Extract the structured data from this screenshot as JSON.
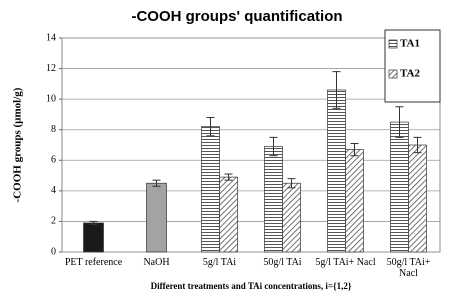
{
  "chart_data": {
    "type": "bar",
    "title": "-COOH groups' quantification",
    "y_label": "-COOH groups (µmol/g)",
    "x_label": "Different treatments and TAi concentrations, i={1,2}",
    "categories": [
      "PET reference",
      "NaOH",
      "5g/l TAi",
      "50g/l TAi",
      "5g/l TAi+ Nacl",
      "50g/l TAi+ Nacl"
    ],
    "series": [
      {
        "values": [
          1.9,
          4.5,
          null,
          null,
          null,
          null
        ],
        "errors": [
          0.1,
          0.2,
          null,
          null,
          null,
          null
        ],
        "colors": [
          "#1a1a1a",
          "#a3a3a3",
          null,
          null,
          null,
          null
        ]
      },
      {
        "name": "TA1",
        "color": "#555555",
        "pattern": "horizontal",
        "values": [
          null,
          null,
          8.2,
          6.9,
          10.6,
          8.5
        ],
        "errors": [
          null,
          null,
          0.6,
          0.6,
          1.2,
          1.0
        ]
      },
      {
        "name": "TA2",
        "color": "#555555",
        "pattern": "diagonal",
        "values": [
          null,
          null,
          4.9,
          4.5,
          6.7,
          7.0
        ],
        "errors": [
          null,
          null,
          0.2,
          0.3,
          0.4,
          0.5
        ]
      }
    ],
    "ylim": [
      0,
      14
    ],
    "yticks": [
      0,
      2,
      4,
      6,
      8,
      10,
      12,
      14
    ],
    "grid": true,
    "legend": "top-right"
  }
}
